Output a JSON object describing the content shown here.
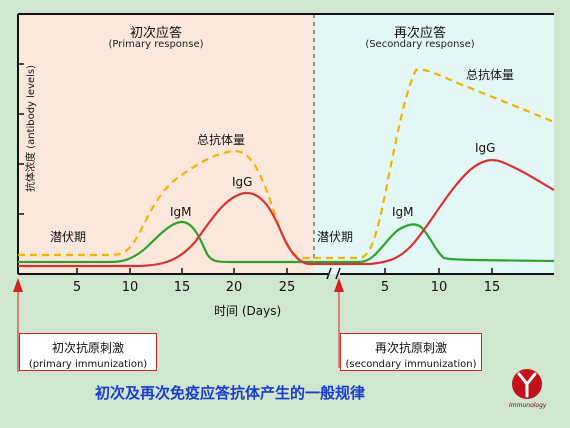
{
  "primary": {
    "title": "初次应答",
    "subtitle": "(Primary response)"
  },
  "secondary": {
    "title": "再次应答",
    "subtitle": "(Secondary response)"
  },
  "y_axis_label": "抗体浓度 (antibody levels)",
  "x_axis_label": "时间 (Days)",
  "x_ticks_primary": [
    "5",
    "10",
    "15",
    "20",
    "25"
  ],
  "x_ticks_secondary": [
    "5",
    "10",
    "15"
  ],
  "labels": {
    "latent_primary": "潜伏期",
    "latent_secondary": "潜伏期",
    "igm_primary": "IgM",
    "igg_primary": "IgG",
    "total_primary": "总抗体量",
    "igm_secondary": "IgM",
    "igg_secondary": "IgG",
    "total_secondary": "总抗体量"
  },
  "primary_box": {
    "title": "初次抗原刺激",
    "subtitle": "(primary immunization)"
  },
  "secondary_box": {
    "title": "再次抗原刺激",
    "subtitle": "(secondary immunization)"
  },
  "footer": "初次及再次免疫应答抗体产生的一般规律",
  "logo_text": "Immunology",
  "colors": {
    "background": "#cfe6cf",
    "primary_panel": "#fbe7dc",
    "secondary_panel": "#e3f7f7",
    "igm": "#2aa52a",
    "igg": "#d63333",
    "total": "#f0b400",
    "arrow": "#d32222",
    "footer_text": "#1a3ccc"
  }
}
